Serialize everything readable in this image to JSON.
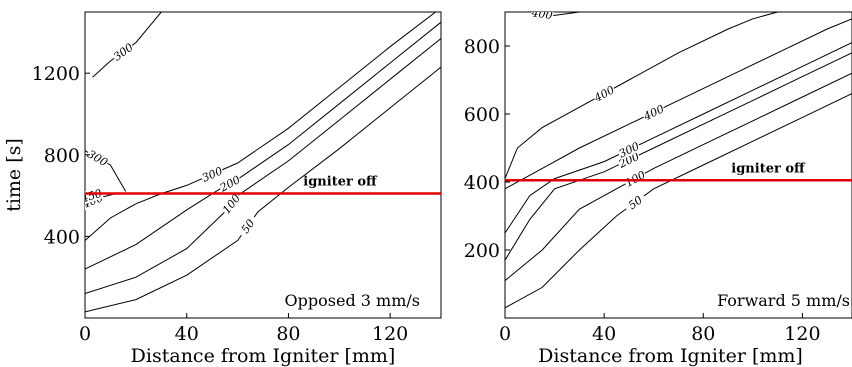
{
  "chart_data": [
    {
      "type": "contour",
      "caption": "Opposed 3 mm/s",
      "xlabel": "Distance from Igniter [mm]",
      "ylabel": "time [s]",
      "xlim": [
        0,
        140
      ],
      "ylim": [
        0,
        1500
      ],
      "xticks": [
        "0",
        "40",
        "80",
        "120"
      ],
      "yticks": [
        "400",
        "800",
        "1200"
      ],
      "reference_line": {
        "y": 610,
        "label": "igniter off",
        "color": "#e00000"
      },
      "contours": [
        {
          "level": "50",
          "x": [
            0,
            20,
            40,
            60,
            68,
            80,
            100,
            120,
            140
          ],
          "y": [
            30,
            90,
            210,
            380,
            520,
            640,
            830,
            1030,
            1230
          ]
        },
        {
          "level": "100",
          "x": [
            0,
            20,
            40,
            55,
            60,
            80,
            100,
            120,
            140
          ],
          "y": [
            120,
            200,
            340,
            520,
            600,
            770,
            970,
            1170,
            1370
          ]
        },
        {
          "level": "200",
          "x": [
            0,
            20,
            40,
            54,
            60,
            80,
            100,
            120,
            140
          ],
          "y": [
            240,
            360,
            530,
            640,
            680,
            850,
            1050,
            1250,
            1450
          ]
        },
        {
          "level": "300",
          "x": [
            0,
            10,
            20,
            30,
            40,
            60,
            80,
            100,
            120,
            140
          ],
          "y": [
            380,
            490,
            560,
            610,
            650,
            760,
            930,
            1130,
            1330,
            1520
          ]
        },
        {
          "level": "400",
          "x": [
            0,
            6,
            12
          ],
          "y": [
            560,
            590,
            610
          ]
        },
        {
          "level": "450",
          "x": [
            0,
            5
          ],
          "y": [
            590,
            610
          ]
        },
        {
          "level": "300",
          "x": [
            0,
            10,
            16
          ],
          "y": [
            820,
            750,
            620
          ]
        },
        {
          "level": "300",
          "x": [
            3,
            10,
            20,
            30
          ],
          "y": [
            1180,
            1260,
            1350,
            1500
          ]
        }
      ]
    },
    {
      "type": "contour",
      "caption": "Forward 5 mm/s",
      "xlabel": "Distance from Igniter [mm]",
      "ylabel": "",
      "xlim": [
        0,
        140
      ],
      "ylim": [
        0,
        900
      ],
      "xticks": [
        "0",
        "40",
        "80",
        "120"
      ],
      "yticks": [
        "200",
        "400",
        "600",
        "800"
      ],
      "reference_line": {
        "y": 405,
        "label": "igniter off",
        "color": "#e00000"
      },
      "contours": [
        {
          "level": "50",
          "x": [
            0,
            15,
            30,
            45,
            60,
            80,
            100,
            120,
            140
          ],
          "y": [
            30,
            90,
            200,
            300,
            380,
            450,
            520,
            590,
            660
          ]
        },
        {
          "level": "100",
          "x": [
            0,
            15,
            30,
            45,
            60,
            80,
            100,
            120,
            140
          ],
          "y": [
            110,
            200,
            320,
            380,
            440,
            510,
            580,
            650,
            720
          ]
        },
        {
          "level": "200",
          "x": [
            0,
            10,
            20,
            40,
            60,
            80,
            100,
            120,
            140
          ],
          "y": [
            170,
            290,
            380,
            430,
            500,
            570,
            640,
            710,
            780
          ]
        },
        {
          "level": "300",
          "x": [
            0,
            10,
            20,
            40,
            60,
            80,
            100,
            120,
            140
          ],
          "y": [
            250,
            360,
            410,
            460,
            530,
            600,
            670,
            740,
            810
          ]
        },
        {
          "level": "400",
          "x": [
            0,
            15,
            30,
            50,
            70,
            90,
            110,
            130,
            140
          ],
          "y": [
            380,
            440,
            500,
            570,
            640,
            710,
            780,
            850,
            880
          ]
        },
        {
          "level": "400",
          "x": [
            0,
            5,
            15,
            30,
            50,
            70,
            90,
            100,
            110
          ],
          "y": [
            410,
            500,
            560,
            620,
            700,
            780,
            850,
            880,
            900
          ]
        },
        {
          "level": "400",
          "x": [
            10,
            20,
            30
          ],
          "y": [
            900,
            890,
            900
          ]
        }
      ]
    }
  ]
}
